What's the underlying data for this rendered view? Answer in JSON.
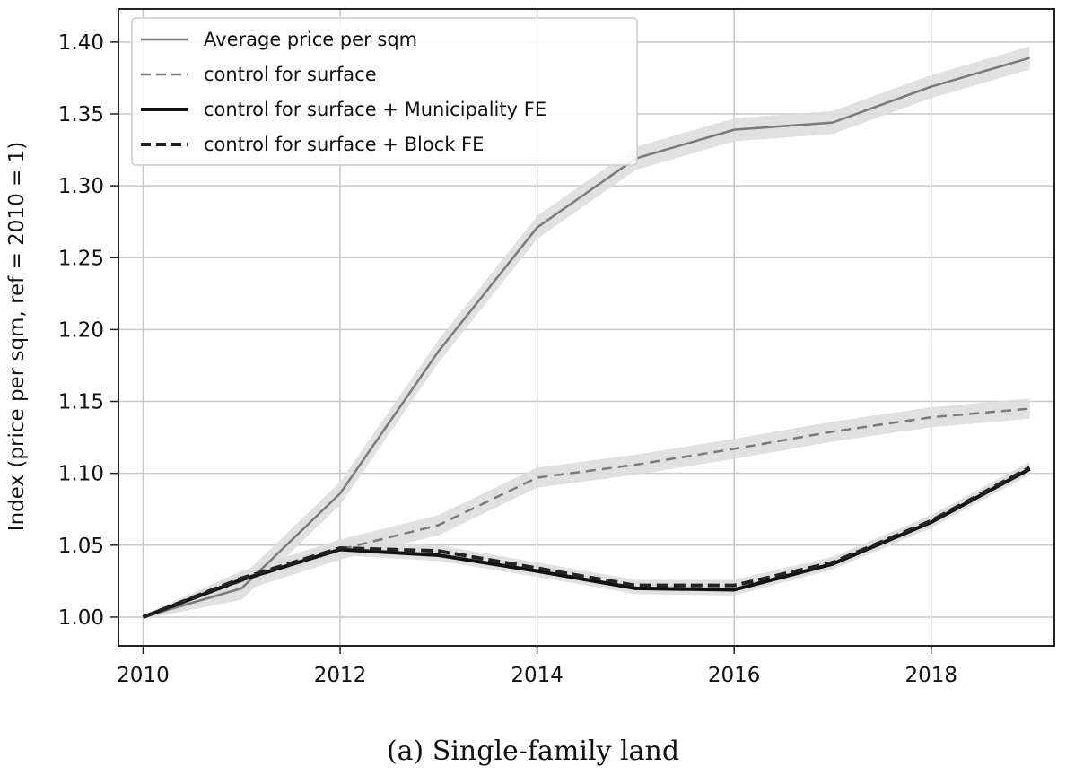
{
  "chart_data": {
    "type": "line",
    "title": "",
    "xlabel": "",
    "ylabel": "Index (price per sqm, ref = 2010 = 1)",
    "xlim": [
      2009.75,
      2019.25
    ],
    "ylim": [
      0.98,
      1.423
    ],
    "xticks": [
      2010,
      2012,
      2014,
      2016,
      2018
    ],
    "yticks": [
      1.0,
      1.05,
      1.1,
      1.15,
      1.2,
      1.25,
      1.3,
      1.35,
      1.4
    ],
    "x": [
      2010,
      2011,
      2012,
      2013,
      2014,
      2015,
      2016,
      2017,
      2018,
      2019
    ],
    "grid": true,
    "legend_position": "upper-left",
    "series": [
      {
        "name": "Average price per sqm",
        "style": "solid",
        "color": "#7a7a7a",
        "values": [
          1.0,
          1.02,
          1.086,
          1.185,
          1.271,
          1.319,
          1.339,
          1.344,
          1.369,
          1.389
        ],
        "ci_halfwidth": 0.008
      },
      {
        "name": "control for surface",
        "style": "dashed",
        "color": "#7a7a7a",
        "values": [
          1.0,
          1.025,
          1.047,
          1.064,
          1.097,
          1.106,
          1.117,
          1.129,
          1.139,
          1.145
        ],
        "ci_halfwidth": 0.007
      },
      {
        "name": "control for surface + Municipality FE",
        "style": "solid",
        "color": "#111111",
        "values": [
          1.0,
          1.026,
          1.047,
          1.043,
          1.032,
          1.02,
          1.019,
          1.037,
          1.066,
          1.103
        ],
        "ci_halfwidth": 0.004
      },
      {
        "name": "control for surface + Block FE",
        "style": "dashed",
        "color": "#222222",
        "values": [
          1.0,
          1.027,
          1.048,
          1.046,
          1.034,
          1.022,
          1.022,
          1.038,
          1.067,
          1.104
        ],
        "ci_halfwidth": 0.004
      }
    ]
  },
  "caption": "(a) Single-family land"
}
